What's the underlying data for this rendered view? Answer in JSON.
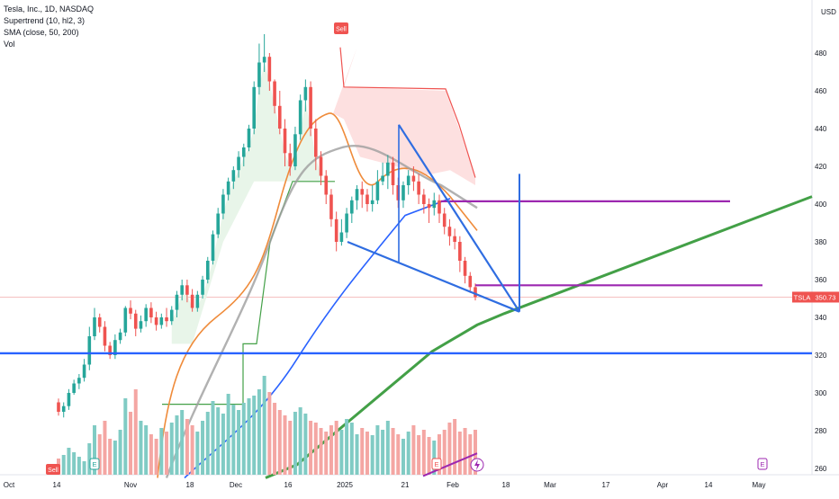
{
  "legend": {
    "symbol": "Tesla, Inc., 1D, NASDAQ",
    "indicator1": "Supertrend (10, hl2, 3)",
    "indicator2": "SMA (close, 50, 200)",
    "indicator3": "Vol"
  },
  "currency": "USD",
  "price_tag": {
    "symbol": "TSLA",
    "value": "350.73"
  },
  "markers": {
    "sell_top": "Sell",
    "sell_bottom": "Sell",
    "earnings": "E"
  },
  "colors": {
    "up": "#26a69a",
    "down": "#ef5350",
    "blue": "#2962ff",
    "trend_blue": "#2f6de1",
    "green": "#43a047",
    "purple": "#9c27b0",
    "orange": "#ef8b3a",
    "grey": "#9e9e9e",
    "st_up_fill": "#e8f5e9",
    "st_down_fill": "#fde0e0"
  },
  "chart_data": {
    "type": "candlestick",
    "y_axis": {
      "min": 255,
      "max": 500,
      "ticks": [
        260,
        280,
        300,
        320,
        340,
        360,
        380,
        400,
        420,
        440,
        460,
        480
      ],
      "position": "right"
    },
    "x_axis": {
      "ticks": [
        "Oct",
        "14",
        "Nov",
        "18",
        "Dec",
        "16",
        "2025",
        "21",
        "Feb",
        "18",
        "Mar",
        "17",
        "Apr",
        "14",
        "May"
      ]
    },
    "last_price": 350.73,
    "candles": [
      [
        295,
        290,
        297,
        288
      ],
      [
        290,
        293,
        295,
        287
      ],
      [
        293,
        300,
        302,
        291
      ],
      [
        300,
        305,
        307,
        299
      ],
      [
        305,
        308,
        310,
        302
      ],
      [
        308,
        315,
        318,
        306
      ],
      [
        315,
        330,
        335,
        312
      ],
      [
        330,
        340,
        345,
        328
      ],
      [
        340,
        335,
        342,
        332
      ],
      [
        335,
        325,
        338,
        322
      ],
      [
        325,
        320,
        327,
        318
      ],
      [
        320,
        328,
        331,
        318
      ],
      [
        328,
        332,
        334,
        326
      ],
      [
        332,
        345,
        346,
        330
      ],
      [
        345,
        342,
        349,
        339
      ],
      [
        342,
        334,
        344,
        330
      ],
      [
        334,
        338,
        341,
        332
      ],
      [
        338,
        345,
        347,
        335
      ],
      [
        345,
        340,
        348,
        337
      ],
      [
        340,
        336,
        343,
        333
      ],
      [
        336,
        340,
        342,
        334
      ],
      [
        340,
        338,
        345,
        335
      ],
      [
        338,
        344,
        346,
        336
      ],
      [
        344,
        352,
        354,
        340
      ],
      [
        352,
        357,
        360,
        349
      ],
      [
        357,
        352,
        360,
        348
      ],
      [
        352,
        345,
        355,
        343
      ],
      [
        345,
        352,
        354,
        343
      ],
      [
        352,
        360,
        362,
        350
      ],
      [
        360,
        370,
        372,
        358
      ],
      [
        370,
        384,
        386,
        368
      ],
      [
        384,
        395,
        398,
        382
      ],
      [
        395,
        405,
        408,
        392
      ],
      [
        405,
        412,
        414,
        402
      ],
      [
        412,
        418,
        420,
        408
      ],
      [
        418,
        425,
        428,
        414
      ],
      [
        425,
        430,
        432,
        420
      ],
      [
        430,
        440,
        442,
        428
      ],
      [
        440,
        462,
        465,
        437
      ],
      [
        462,
        475,
        485,
        458
      ],
      [
        475,
        478,
        490,
        470
      ],
      [
        478,
        465,
        480,
        460
      ],
      [
        465,
        452,
        466,
        448
      ],
      [
        452,
        440,
        460,
        437
      ],
      [
        440,
        427,
        445,
        420
      ],
      [
        427,
        420,
        432,
        415
      ],
      [
        420,
        437,
        441,
        418
      ],
      [
        437,
        455,
        458,
        434
      ],
      [
        455,
        462,
        466,
        449
      ],
      [
        462,
        440,
        465,
        436
      ],
      [
        440,
        425,
        445,
        418
      ],
      [
        425,
        415,
        428,
        410
      ],
      [
        415,
        405,
        418,
        400
      ],
      [
        405,
        392,
        408,
        388
      ],
      [
        392,
        380,
        396,
        375
      ],
      [
        380,
        385,
        392,
        378
      ],
      [
        385,
        395,
        398,
        382
      ],
      [
        395,
        402,
        404,
        390
      ],
      [
        402,
        408,
        410,
        397
      ],
      [
        408,
        405,
        412,
        398
      ],
      [
        405,
        400,
        408,
        396
      ],
      [
        400,
        402,
        410,
        396
      ],
      [
        402,
        412,
        418,
        400
      ],
      [
        412,
        415,
        422,
        410
      ],
      [
        415,
        422,
        426,
        408
      ],
      [
        422,
        410,
        425,
        405
      ],
      [
        410,
        402,
        414,
        398
      ],
      [
        402,
        410,
        412,
        398
      ],
      [
        410,
        415,
        418,
        405
      ],
      [
        415,
        412,
        420,
        407
      ],
      [
        412,
        405,
        416,
        400
      ],
      [
        405,
        400,
        408,
        395
      ],
      [
        400,
        398,
        403,
        390
      ],
      [
        398,
        402,
        406,
        394
      ],
      [
        402,
        395,
        405,
        390
      ],
      [
        395,
        388,
        398,
        384
      ],
      [
        388,
        383,
        392,
        378
      ],
      [
        383,
        380,
        387,
        376
      ],
      [
        380,
        370,
        383,
        364
      ],
      [
        370,
        362,
        372,
        358
      ],
      [
        362,
        356,
        364,
        353
      ],
      [
        356,
        350.73,
        358,
        349
      ]
    ]
  }
}
